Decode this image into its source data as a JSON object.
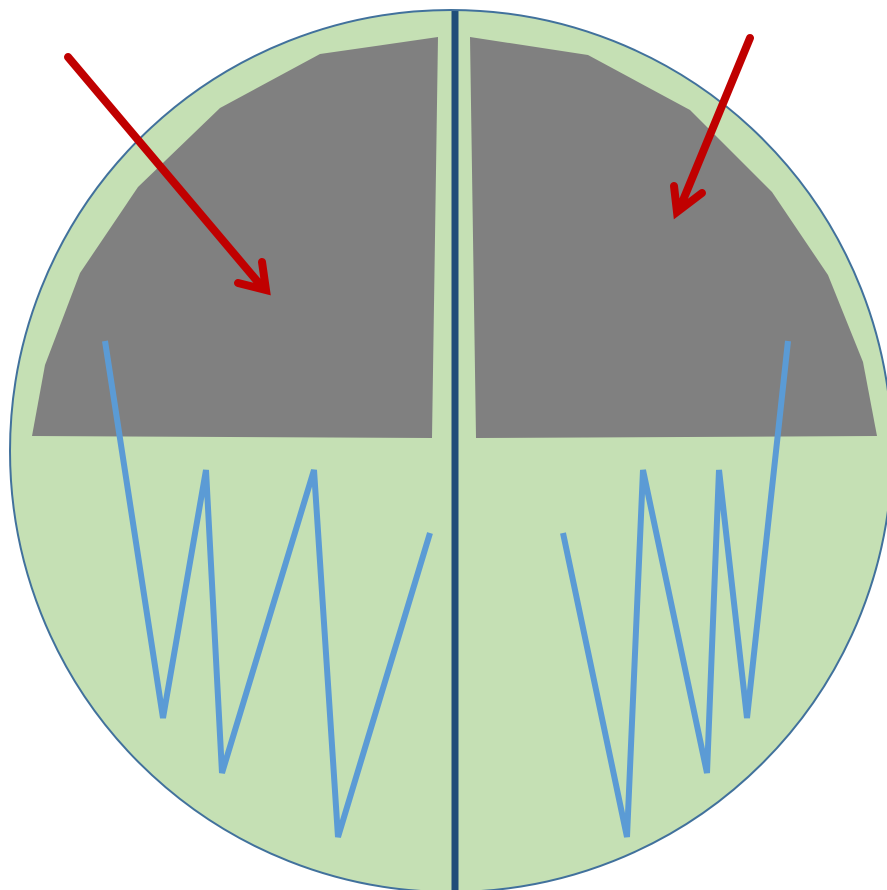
{
  "colors": {
    "background": "#ffffff",
    "dish_fill": "#c5e0b4",
    "dish_outline": "#41719c",
    "divider": "#1f4e79",
    "gray_region": "#808080",
    "zigzag": "#5b9bd5",
    "arrow": "#c00000"
  }
}
